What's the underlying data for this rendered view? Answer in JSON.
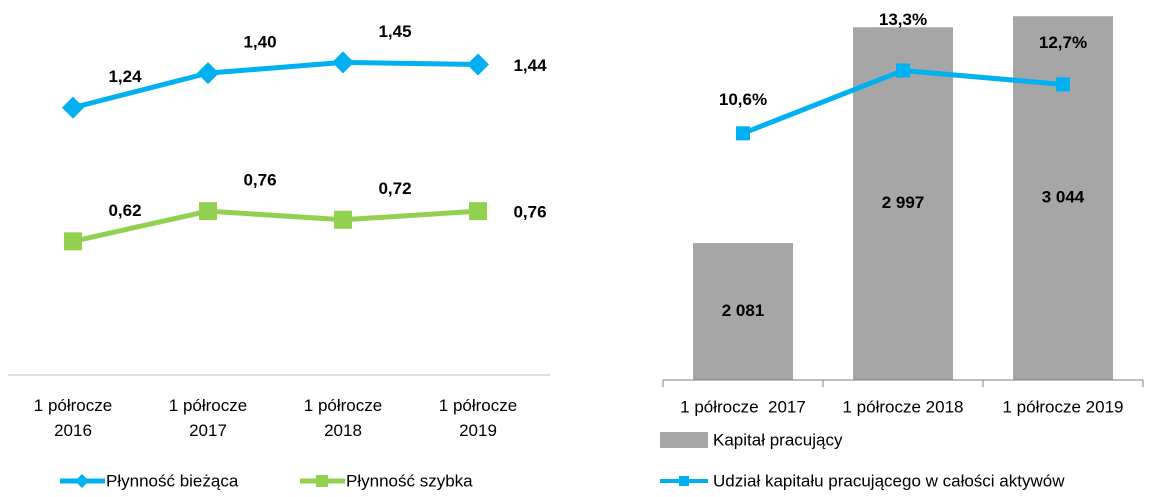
{
  "chart_data": [
    {
      "type": "line",
      "categories": [
        "1 półrocze 2016",
        "1 półrocze 2017",
        "1 półrocze 2018",
        "1 półrocze 2019"
      ],
      "series": [
        {
          "name": "Płynność bieżąca",
          "color": "#00b0f0",
          "marker": "diamond",
          "values": [
            1.24,
            1.4,
            1.45,
            1.44
          ],
          "value_labels": [
            "1,24",
            "1,40",
            "1,45",
            "1,44"
          ]
        },
        {
          "name": "Płynność szybka",
          "color": "#92d050",
          "marker": "square",
          "values": [
            0.62,
            0.76,
            0.72,
            0.76
          ],
          "value_labels": [
            "0,62",
            "0,76",
            "0,72",
            "0,76"
          ]
        }
      ],
      "ylim": [
        0,
        1.6
      ]
    },
    {
      "type": "bar_line",
      "categories": [
        "1 półrocze  2017",
        "1 półrocze 2018",
        "1 półrocze 2019"
      ],
      "series": [
        {
          "name": "Kapitał pracujący",
          "color": "#a6a6a6",
          "type": "bar",
          "values": [
            2081,
            2997,
            3044
          ],
          "value_labels": [
            "2 081",
            "2 997",
            "3 044"
          ]
        },
        {
          "name": "Udział kapitału pracującego w całości aktywów",
          "color": "#00b0f0",
          "type": "line",
          "axis": "y2",
          "values": [
            10.6,
            13.3,
            12.7
          ],
          "value_labels": [
            "10,6%",
            "13,3%",
            "12,7%"
          ]
        }
      ],
      "ylim": [
        1500,
        3100
      ],
      "y2lim": [
        0,
        16.2
      ]
    }
  ]
}
